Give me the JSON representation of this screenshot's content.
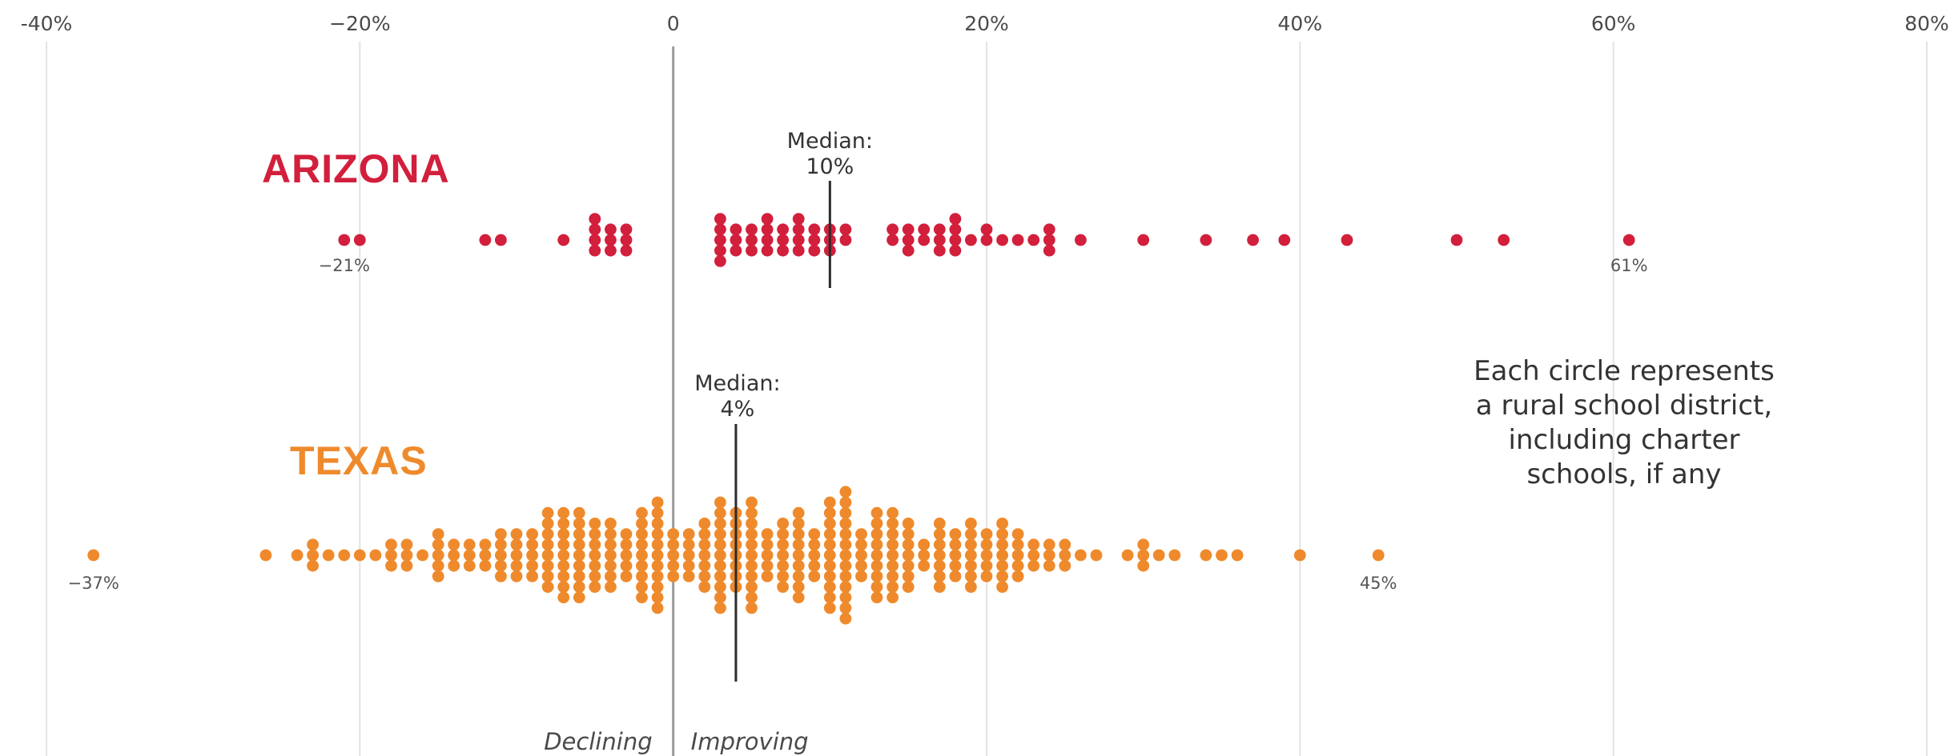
{
  "chart_data": {
    "type": "scatter",
    "x_ticks": [
      "-40%",
      "−20%",
      "0",
      "20%",
      "40%",
      "60%",
      "80%"
    ],
    "x_tick_values": [
      -40,
      -20,
      0,
      20,
      40,
      60,
      80
    ],
    "xlim": [
      -40,
      80
    ],
    "grid": "vertical",
    "direction_labels": {
      "left": "Declining",
      "right": "Improving"
    },
    "note": [
      "Each circle represents",
      "a rural school district,",
      "including charter",
      "schools, if any"
    ],
    "colors": {
      "arizona": "#d21f3c",
      "texas": "#ef8a2c",
      "median_line": "#2b2b2b",
      "zero_line": "#9a9a9a",
      "grid": "#e3e3e3"
    },
    "series": [
      {
        "name": "ARIZONA",
        "median": 10,
        "median_label": [
          "Median:",
          "10%"
        ],
        "min_label": "−21%",
        "max_label": "61%",
        "counts": [
          [
            -21,
            1
          ],
          [
            -20,
            1
          ],
          [
            -12,
            1
          ],
          [
            -11,
            1
          ],
          [
            -7,
            1
          ],
          [
            -5,
            4
          ],
          [
            -4,
            3
          ],
          [
            -3,
            3
          ],
          [
            3,
            5
          ],
          [
            4,
            3
          ],
          [
            5,
            3
          ],
          [
            6,
            4
          ],
          [
            7,
            3
          ],
          [
            8,
            4
          ],
          [
            9,
            3
          ],
          [
            10,
            3
          ],
          [
            11,
            2
          ],
          [
            14,
            2
          ],
          [
            15,
            3
          ],
          [
            16,
            2
          ],
          [
            17,
            3
          ],
          [
            18,
            4
          ],
          [
            19,
            1
          ],
          [
            20,
            2
          ],
          [
            21,
            1
          ],
          [
            22,
            1
          ],
          [
            23,
            1
          ],
          [
            24,
            3
          ],
          [
            26,
            1
          ],
          [
            30,
            1
          ],
          [
            34,
            1
          ],
          [
            37,
            1
          ],
          [
            39,
            1
          ],
          [
            43,
            1
          ],
          [
            50,
            1
          ],
          [
            53,
            1
          ],
          [
            61,
            1
          ]
        ]
      },
      {
        "name": "TEXAS",
        "median": 4,
        "median_label": [
          "Median:",
          "4%"
        ],
        "min_label": "−37%",
        "max_label": "45%",
        "counts": [
          [
            -37,
            1
          ],
          [
            -26,
            1
          ],
          [
            -24,
            1
          ],
          [
            -23,
            3
          ],
          [
            -22,
            1
          ],
          [
            -21,
            1
          ],
          [
            -20,
            1
          ],
          [
            -19,
            1
          ],
          [
            -18,
            3
          ],
          [
            -17,
            3
          ],
          [
            -16,
            1
          ],
          [
            -15,
            5
          ],
          [
            -14,
            3
          ],
          [
            -13,
            3
          ],
          [
            -12,
            3
          ],
          [
            -11,
            5
          ],
          [
            -10,
            5
          ],
          [
            -9,
            5
          ],
          [
            -8,
            8
          ],
          [
            -7,
            9
          ],
          [
            -6,
            9
          ],
          [
            -5,
            7
          ],
          [
            -4,
            7
          ],
          [
            -3,
            5
          ],
          [
            -2,
            9
          ],
          [
            -1,
            11
          ],
          [
            0,
            5
          ],
          [
            1,
            5
          ],
          [
            2,
            7
          ],
          [
            3,
            11
          ],
          [
            4,
            8
          ],
          [
            5,
            11
          ],
          [
            6,
            5
          ],
          [
            7,
            7
          ],
          [
            8,
            9
          ],
          [
            9,
            5
          ],
          [
            10,
            11
          ],
          [
            11,
            13
          ],
          [
            12,
            5
          ],
          [
            13,
            9
          ],
          [
            14,
            9
          ],
          [
            15,
            7
          ],
          [
            16,
            3
          ],
          [
            17,
            7
          ],
          [
            18,
            5
          ],
          [
            19,
            7
          ],
          [
            20,
            5
          ],
          [
            21,
            7
          ],
          [
            22,
            5
          ],
          [
            23,
            3
          ],
          [
            24,
            3
          ],
          [
            25,
            3
          ],
          [
            26,
            1
          ],
          [
            27,
            1
          ],
          [
            29,
            1
          ],
          [
            30,
            3
          ],
          [
            31,
            1
          ],
          [
            32,
            1
          ],
          [
            34,
            1
          ],
          [
            35,
            1
          ],
          [
            36,
            1
          ],
          [
            40,
            1
          ],
          [
            45,
            1
          ]
        ]
      }
    ]
  }
}
